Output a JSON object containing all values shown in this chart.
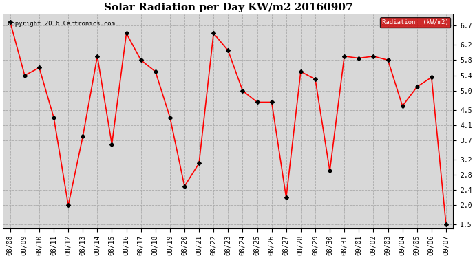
{
  "title": "Solar Radiation per Day KW/m2 20160907",
  "copyright_text": "Copyright 2016 Cartronics.com",
  "legend_label": "Radiation  (kW/m2)",
  "dates": [
    "08/08",
    "08/09",
    "08/10",
    "08/11",
    "08/12",
    "08/13",
    "08/14",
    "08/15",
    "08/16",
    "08/17",
    "08/18",
    "08/19",
    "08/20",
    "08/21",
    "08/22",
    "08/23",
    "08/24",
    "08/25",
    "08/26",
    "08/27",
    "08/28",
    "08/29",
    "08/30",
    "08/31",
    "09/01",
    "09/02",
    "09/03",
    "09/04",
    "09/05",
    "09/06",
    "09/07"
  ],
  "values": [
    6.8,
    5.4,
    5.6,
    4.3,
    2.0,
    3.8,
    5.9,
    3.6,
    6.5,
    5.8,
    5.5,
    4.3,
    2.5,
    3.1,
    6.5,
    6.05,
    5.0,
    4.7,
    4.7,
    2.2,
    5.5,
    5.3,
    2.9,
    5.9,
    5.85,
    5.9,
    5.8,
    4.6,
    5.1,
    5.35,
    1.5
  ],
  "line_color": "red",
  "marker": "D",
  "marker_color": "black",
  "marker_size": 3,
  "line_width": 1.2,
  "ylim": [
    1.4,
    7.0
  ],
  "yticks": [
    1.5,
    2.0,
    2.4,
    2.8,
    3.2,
    3.7,
    4.1,
    4.5,
    5.0,
    5.4,
    5.8,
    6.2,
    6.7
  ],
  "grid_color": "#aaaaaa",
  "grid_linestyle": "--",
  "bg_color": "#ffffff",
  "plot_bg_color": "#d8d8d8",
  "title_fontsize": 11,
  "tick_fontsize": 7,
  "legend_bg": "#cc0000",
  "legend_text_color": "#ffffff"
}
